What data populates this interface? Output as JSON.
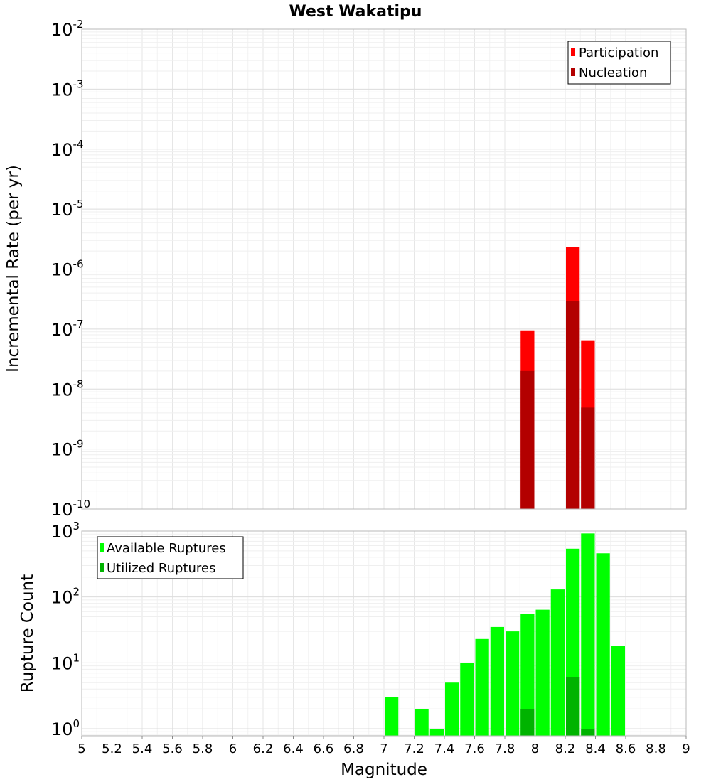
{
  "chart_data": [
    {
      "type": "bar",
      "title": "West Wakatipu",
      "xlabel": "",
      "ylabel": "Incremental Rate (per yr)",
      "yscale": "log",
      "xlim": [
        5,
        9
      ],
      "ylim": [
        1e-10,
        0.01
      ],
      "y_ticks": [
        {
          "base": "10",
          "exp": "-2"
        },
        {
          "base": "10",
          "exp": "-3"
        },
        {
          "base": "10",
          "exp": "-4"
        },
        {
          "base": "10",
          "exp": "-5"
        },
        {
          "base": "10",
          "exp": "-6"
        },
        {
          "base": "10",
          "exp": "-7"
        },
        {
          "base": "10",
          "exp": "-8"
        },
        {
          "base": "10",
          "exp": "-9"
        },
        {
          "base": "10",
          "exp": "-10"
        }
      ],
      "legend": {
        "position": "top-right",
        "entries": [
          "Participation",
          "Nucleation"
        ]
      },
      "colors": {
        "Participation": "#ff0000",
        "Nucleation": "#b30000"
      },
      "series": [
        {
          "name": "Participation",
          "x": [
            7.95,
            8.25,
            8.35
          ],
          "values": [
            9.5e-08,
            2.3e-06,
            6.5e-08
          ]
        },
        {
          "name": "Nucleation",
          "x": [
            7.95,
            8.25,
            8.35
          ],
          "values": [
            2e-08,
            2.9e-07,
            4.9e-09
          ]
        }
      ]
    },
    {
      "type": "bar",
      "title": "",
      "xlabel": "Magnitude",
      "ylabel": "Rupture Count",
      "yscale": "log",
      "xlim": [
        5,
        9
      ],
      "ylim": [
        0.78,
        1000
      ],
      "x_ticks": [
        "5",
        "5.2",
        "5.4",
        "5.6",
        "5.8",
        "6",
        "6.2",
        "6.4",
        "6.6",
        "6.8",
        "7",
        "7.2",
        "7.4",
        "7.6",
        "7.8",
        "8",
        "8.2",
        "8.4",
        "8.6",
        "8.8",
        "9"
      ],
      "y_ticks": [
        {
          "base": "10",
          "exp": "3"
        },
        {
          "base": "10",
          "exp": "2"
        },
        {
          "base": "10",
          "exp": "1"
        },
        {
          "base": "10",
          "exp": "0"
        }
      ],
      "legend": {
        "position": "top-left",
        "entries": [
          "Available Ruptures",
          "Utilized Ruptures"
        ]
      },
      "colors": {
        "Available Ruptures": "#00ff00",
        "Utilized Ruptures": "#00b300"
      },
      "series": [
        {
          "name": "Available Ruptures",
          "x": [
            7.05,
            7.25,
            7.35,
            7.45,
            7.55,
            7.65,
            7.75,
            7.85,
            7.95,
            8.05,
            8.15,
            8.25,
            8.35,
            8.45,
            8.55
          ],
          "values": [
            3,
            2,
            1,
            5,
            10,
            23,
            35,
            30,
            56,
            64,
            130,
            540,
            920,
            460,
            18
          ]
        },
        {
          "name": "Utilized Ruptures",
          "x": [
            7.95,
            8.25,
            8.35
          ],
          "values": [
            2,
            6,
            1
          ]
        }
      ]
    }
  ]
}
